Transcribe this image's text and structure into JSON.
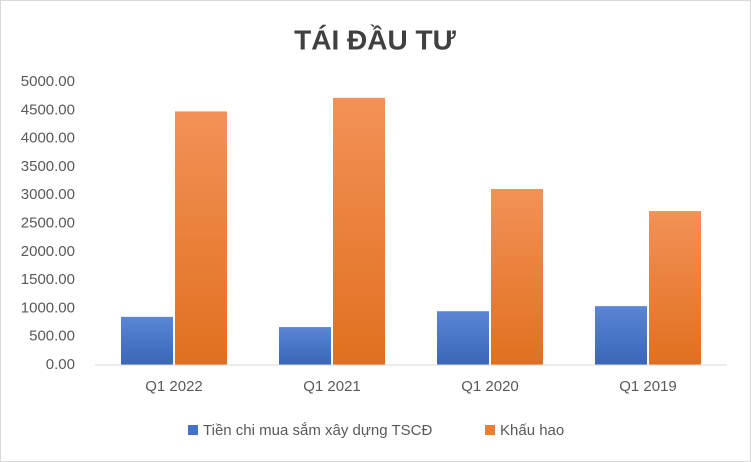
{
  "chart_data": {
    "type": "bar",
    "title": "TÁI ĐẦU TƯ",
    "categories": [
      "Q1 2022",
      "Q1 2021",
      "Q1 2020",
      "Q1 2019"
    ],
    "series": [
      {
        "name": "Tiền chi mua sắm xây dựng TSCĐ",
        "color": "#4472c4",
        "values": [
          850,
          670,
          950,
          1040
        ]
      },
      {
        "name": "Khấu hao",
        "color": "#ed7d31",
        "values": [
          4480,
          4720,
          3110,
          2720
        ]
      }
    ],
    "ylim": [
      0,
      5000
    ],
    "yticks": [
      {
        "value": 0,
        "label": "0.00"
      },
      {
        "value": 500,
        "label": "500.00"
      },
      {
        "value": 1000,
        "label": "1000.00"
      },
      {
        "value": 1500,
        "label": "1500.00"
      },
      {
        "value": 2000,
        "label": "2000.00"
      },
      {
        "value": 2500,
        "label": "2500.00"
      },
      {
        "value": 3000,
        "label": "3000.00"
      },
      {
        "value": 3500,
        "label": "3500.00"
      },
      {
        "value": 4000,
        "label": "4000.00"
      },
      {
        "value": 4500,
        "label": "4500.00"
      },
      {
        "value": 5000,
        "label": "5000.00"
      }
    ],
    "grid": false,
    "legend": "bottom"
  }
}
